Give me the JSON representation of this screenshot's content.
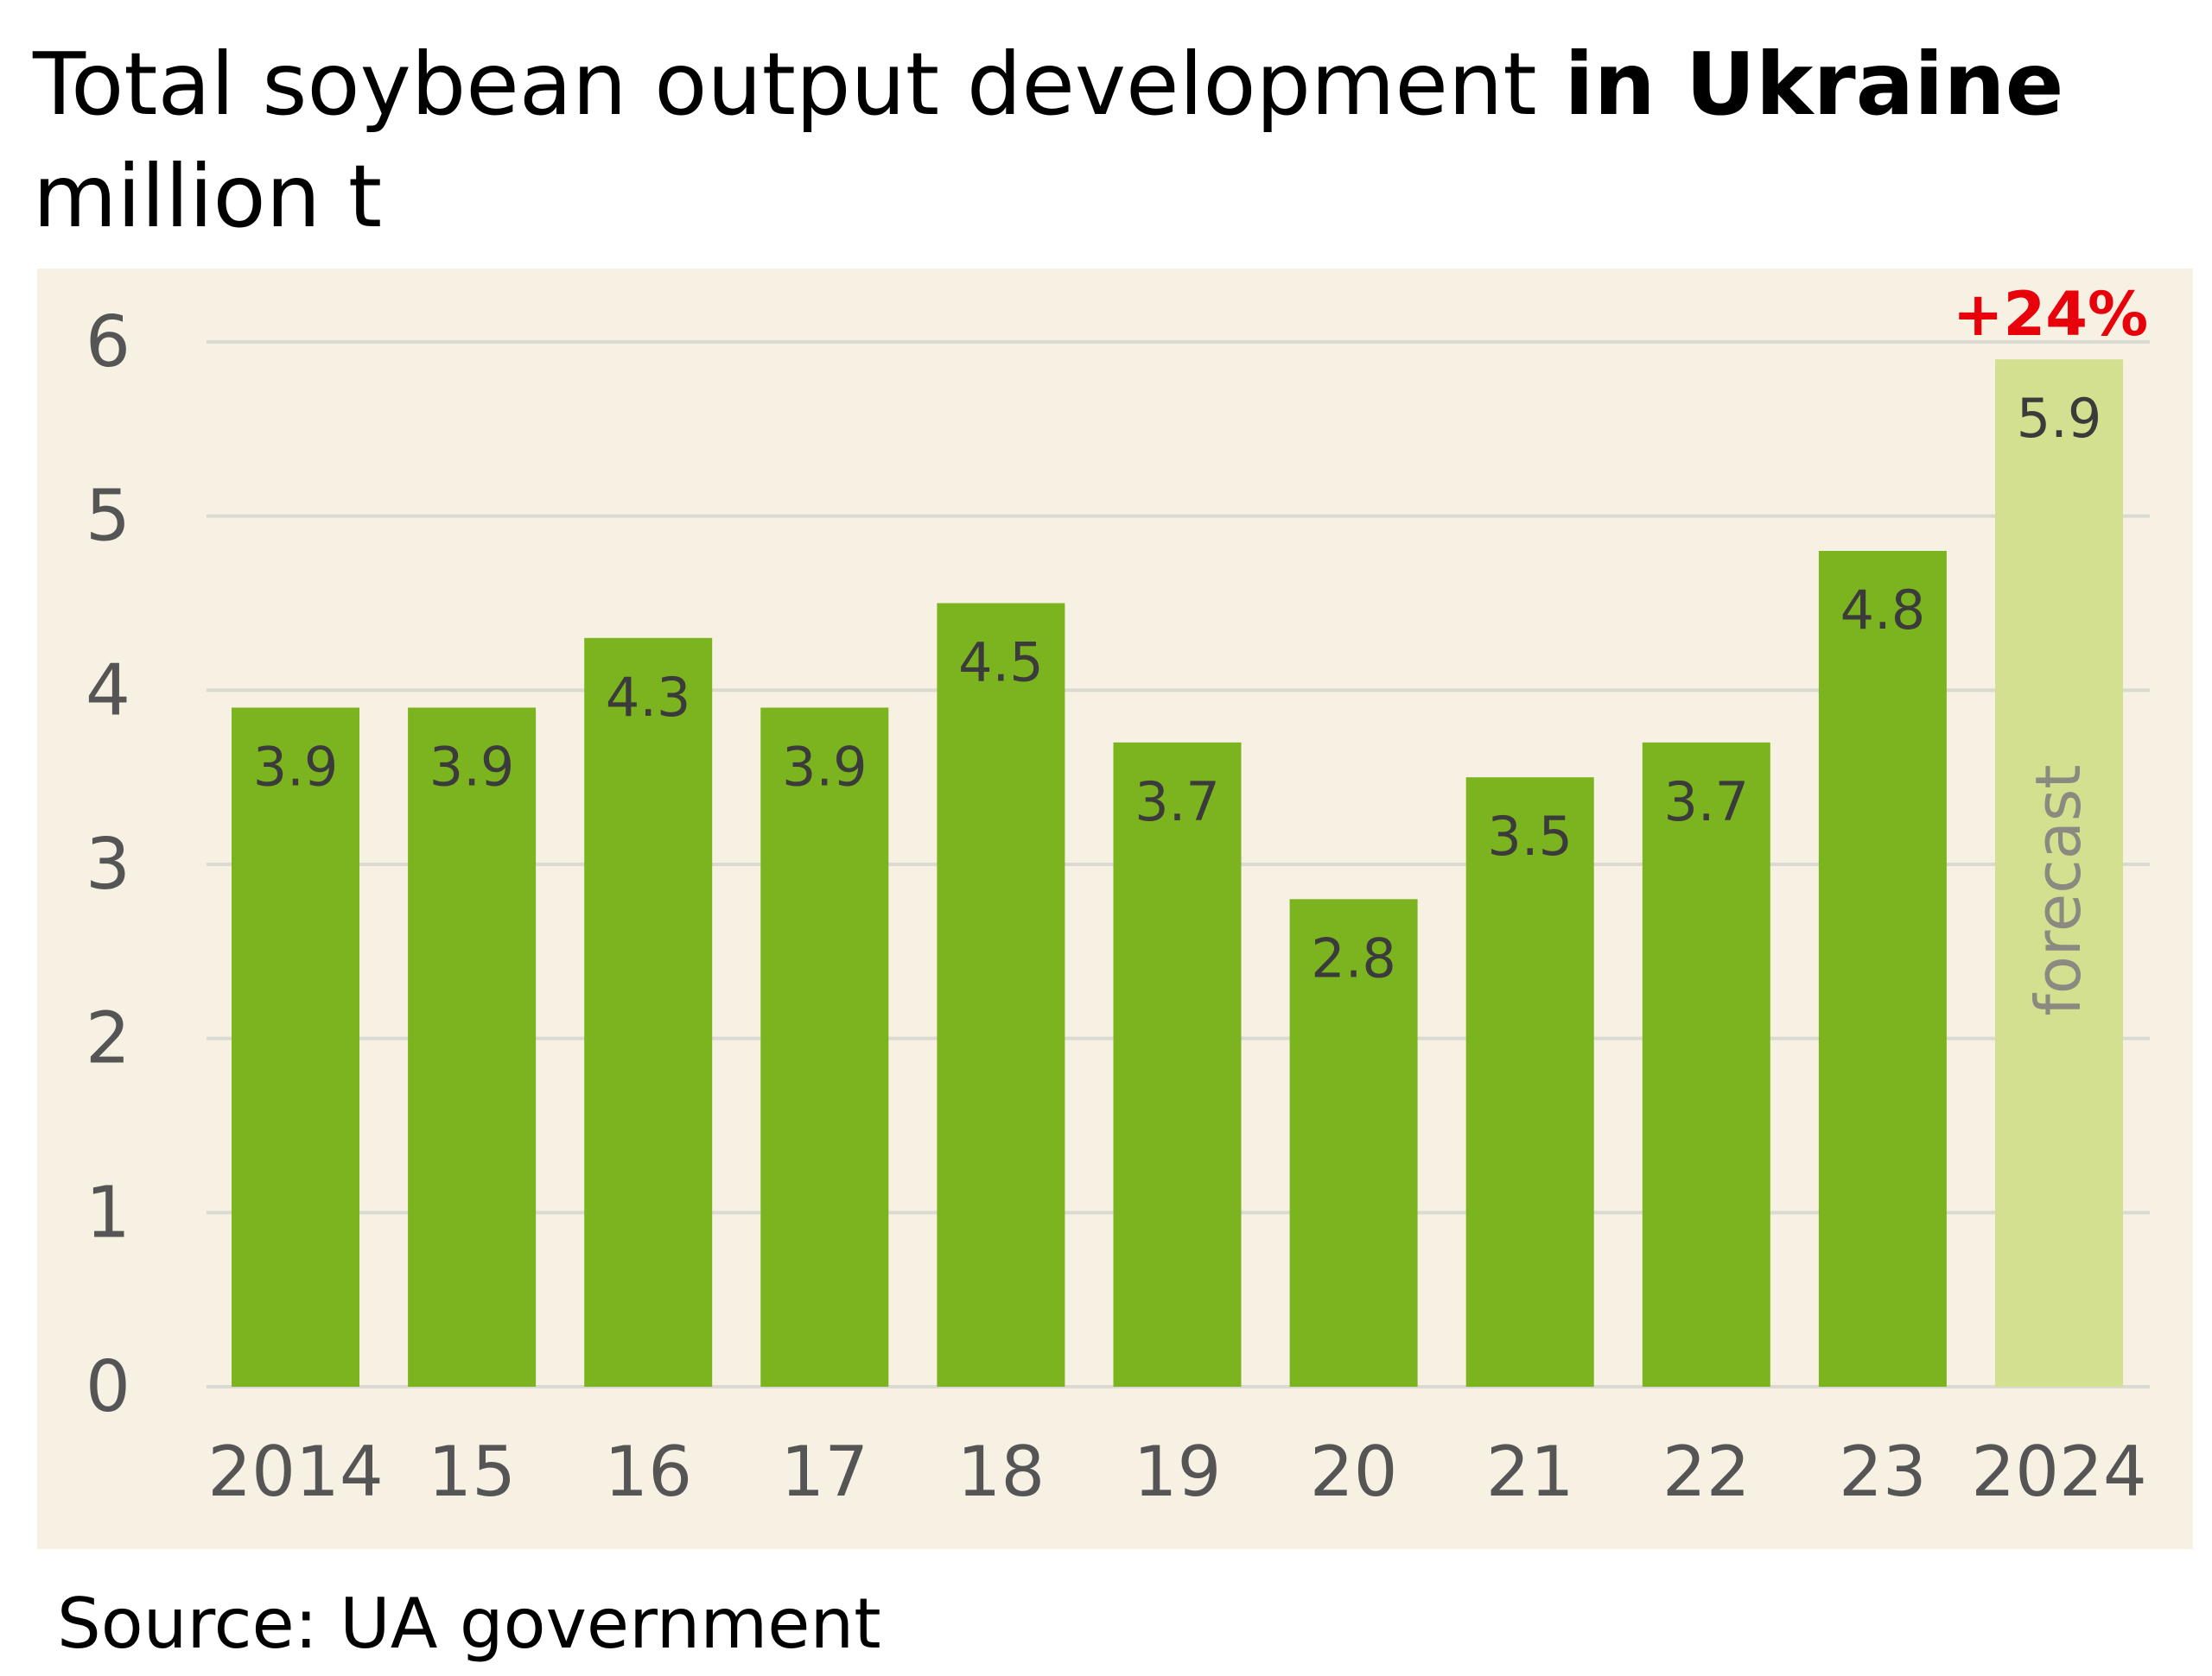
{
  "title": {
    "prefix": "Total soybean output development ",
    "bold": "in Ukraine"
  },
  "subtitle": "million t",
  "source": "Source: UA government",
  "colors": {
    "background": "#f7f1e3",
    "bar": "#7cb41f",
    "forecast_bar": "#d3e08f",
    "grid": "#dadad2",
    "change": "#e8000b"
  },
  "chart_data": {
    "type": "bar",
    "title": "Total soybean output development in Ukraine",
    "ylabel": "million t",
    "categories": [
      "2014",
      "15",
      "16",
      "17",
      "18",
      "19",
      "20",
      "21",
      "22",
      "23",
      "2024"
    ],
    "values": [
      3.9,
      3.9,
      4.3,
      3.9,
      4.5,
      3.7,
      2.8,
      3.5,
      3.7,
      4.8,
      5.9
    ],
    "data_labels": [
      "3.9",
      "3.9",
      "4.3",
      "3.9",
      "4.5",
      "3.7",
      "2.8",
      "3.5",
      "3.7",
      "4.8",
      "5.9"
    ],
    "ylim": [
      0,
      6
    ],
    "yticks": [
      0,
      1,
      2,
      3,
      4,
      5,
      6
    ],
    "grid": true,
    "forecast_index": 10,
    "forecast_label": "forecast",
    "change_label": "+24%"
  }
}
